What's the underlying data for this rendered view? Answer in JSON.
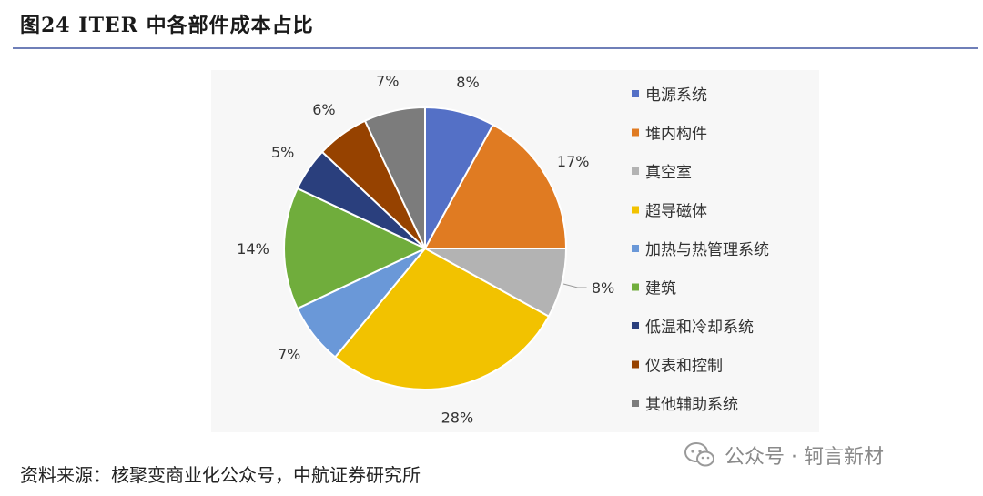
{
  "figure_title": "图24 ITER 中各部件成本占比",
  "source_note": "资料来源：核聚变商业化公众号，中航证券研究所",
  "watermark": {
    "icon": "wechat-icon",
    "text": "公众号 · 轲言新材"
  },
  "chart_data": {
    "type": "pie",
    "title": "",
    "categories": [
      "电源系统",
      "堆内构件",
      "真空室",
      "超导磁体",
      "加热与热管理系统",
      "建筑",
      "低温和冷却系统",
      "仪表和控制",
      "其他辅助系统"
    ],
    "values": [
      8,
      17,
      8,
      28,
      7,
      14,
      5,
      6,
      7
    ],
    "labels": [
      "8%",
      "17%",
      "8%",
      "28%",
      "7%",
      "14%",
      "5%",
      "6%",
      "7%"
    ],
    "colors": [
      "#5470c6",
      "#e07b22",
      "#b3b3b3",
      "#f2c200",
      "#6a98d8",
      "#70ad3c",
      "#2a3f7d",
      "#964200",
      "#7c7c7c"
    ],
    "start_angle": "12 o'clock",
    "direction": "clockwise",
    "legend_position": "right"
  }
}
